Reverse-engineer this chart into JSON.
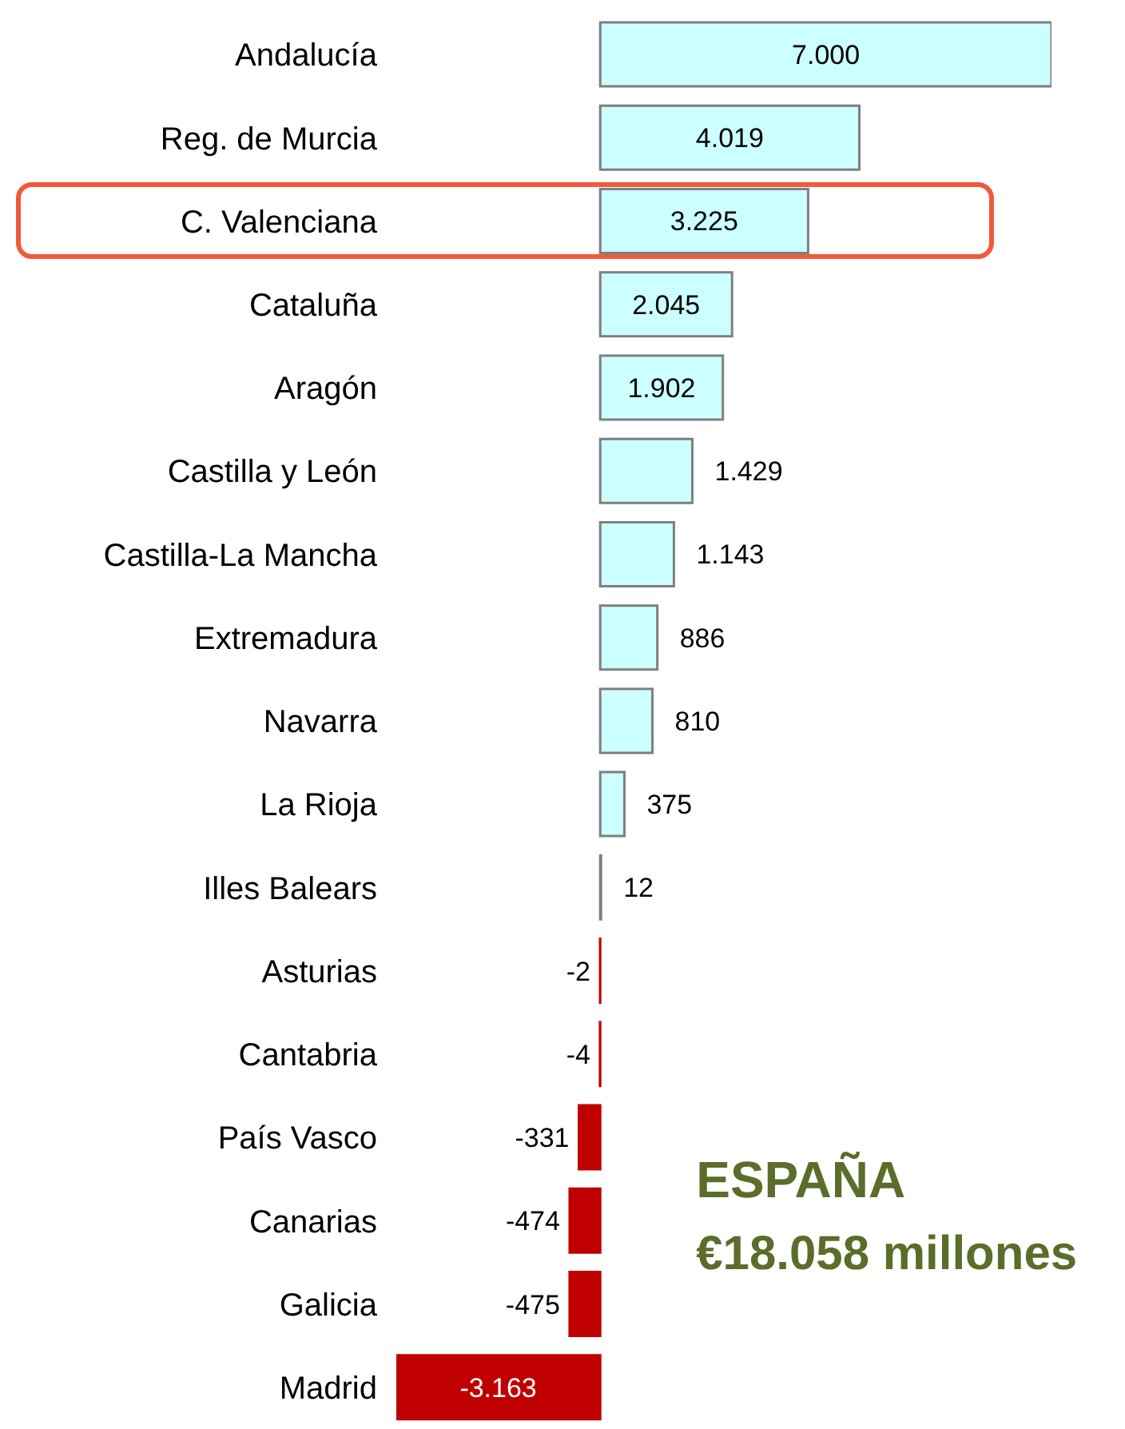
{
  "chart_data": {
    "type": "bar",
    "orientation": "horizontal",
    "categories": [
      "Andalucía",
      "Reg. de Murcia",
      "C. Valenciana",
      "Cataluña",
      "Aragón",
      "Castilla y León",
      "Castilla-La Mancha",
      "Extremadura",
      "Navarra",
      "La Rioja",
      "Illes Balears",
      "Asturias",
      "Cantabria",
      "País Vasco",
      "Canarias",
      "Galicia",
      "Madrid"
    ],
    "values": [
      7000,
      4019,
      3225,
      2045,
      1902,
      1429,
      1143,
      886,
      810,
      375,
      12,
      -2,
      -4,
      -331,
      -474,
      -475,
      -3163
    ],
    "value_labels": [
      "7.000",
      "4.019",
      "3.225",
      "2.045",
      "1.902",
      "1.429",
      "1.143",
      "886",
      "810",
      "375",
      "12",
      "-2",
      "-4",
      "-331",
      "-474",
      "-475",
      "-3.163"
    ],
    "colors": [
      "#ccffff",
      "#ccffff",
      "#ccffff",
      "#ccffff",
      "#ccffff",
      "#ccffff",
      "#ccffff",
      "#ccffff",
      "#ccffff",
      "#ccffff",
      "#ccffff",
      "#c00000",
      "#c00000",
      "#c00000",
      "#c00000",
      "#c00000",
      "#c00000"
    ],
    "annotations": [
      "ESPAÑA",
      "€18.058 millones"
    ]
  }
}
